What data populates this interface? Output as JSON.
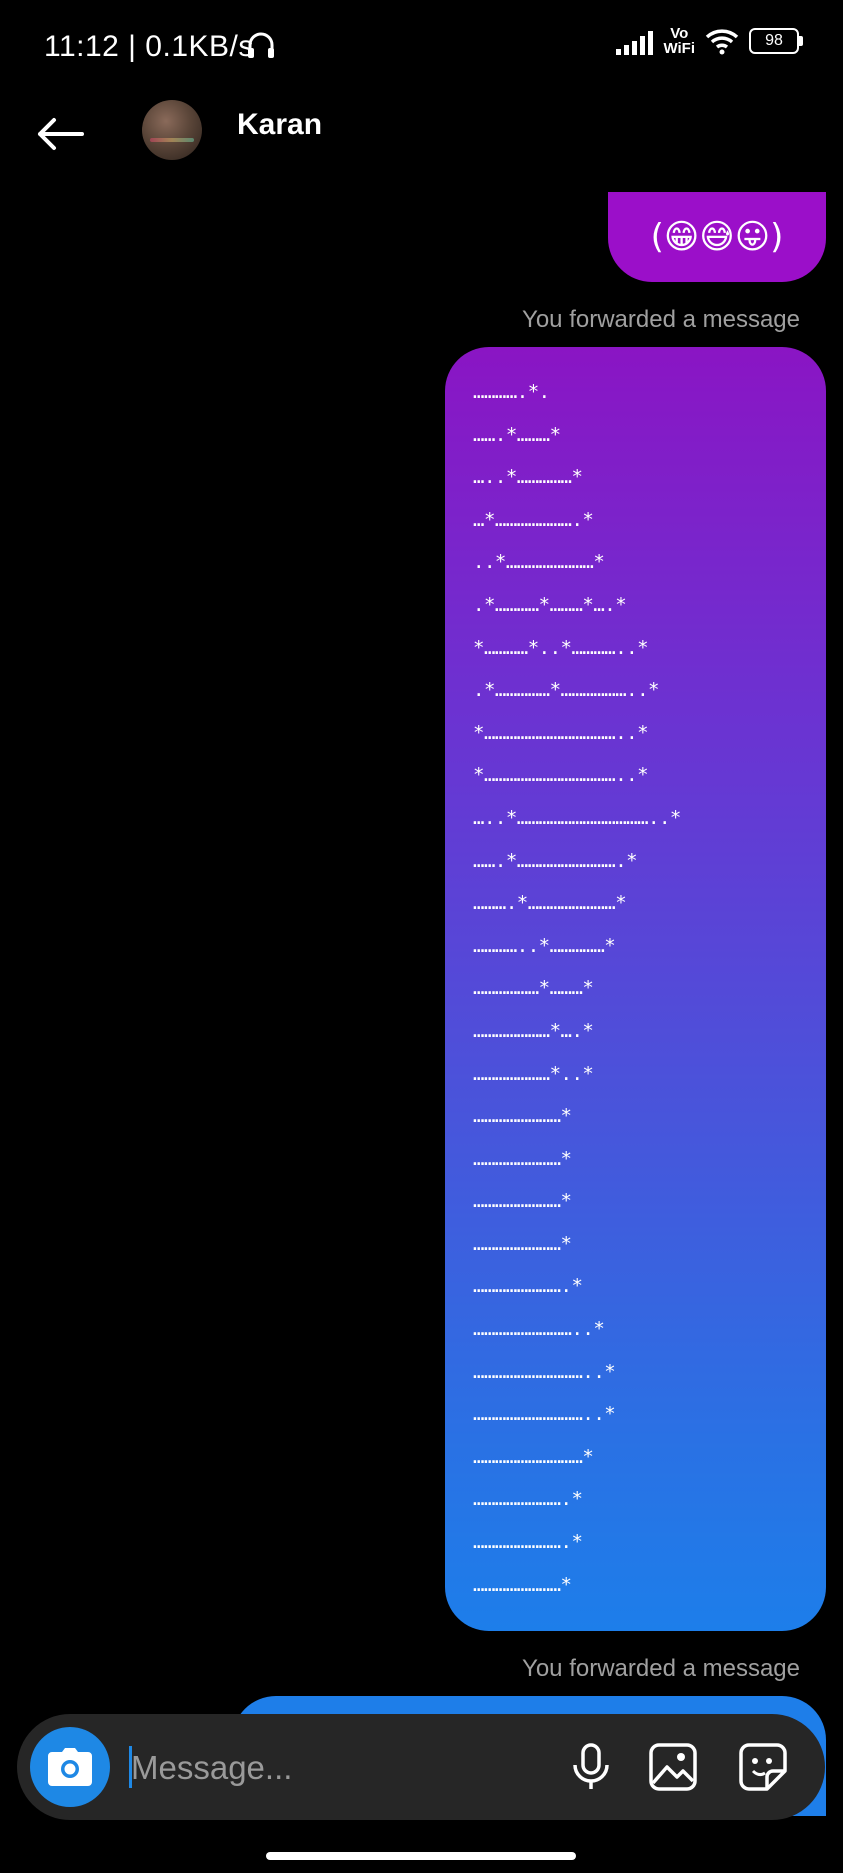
{
  "status_bar": {
    "time_speed": "11:12 | 0.1KB/s",
    "vowifi_top": "Vo",
    "vowifi_bottom": "WiFi",
    "battery": "98"
  },
  "header": {
    "contact_name": "Karan"
  },
  "messages": {
    "emoji_message": "(😁😅😛)",
    "forwarded_label_1": "You forwarded a message",
    "ascii_art": [
      "………….*.",
      "…….*………*",
      "…..*……………*",
      "…*………………….*",
      "..*……………………*",
      ".*…………*………*….*",
      "*…………*..*…………..*",
      ".*……………*………………..*",
      "*………………………………..*",
      "*………………………………..*",
      "…..*………………………………..*",
      "…….*……………………….*",
      "……….*……………………*",
      "…………..*……………*",
      "………………*………*",
      "…………………*….*",
      "…………………*..*",
      "……………………*",
      "……………………*",
      "……………………*",
      "……………………*",
      "…………………….*",
      "………………………..*",
      "…………………………..*",
      "…………………………..*",
      "…………………………*",
      "…………………….*",
      "…………………….*",
      "……………………*"
    ],
    "forwarded_label_2": "You forwarded a message"
  },
  "composer": {
    "placeholder": "Message..."
  },
  "icons": {
    "back": "arrow-left-icon",
    "camera": "camera-icon",
    "mic": "microphone-icon",
    "gallery": "image-icon",
    "sticker": "sticker-icon"
  },
  "colors": {
    "bubble_purple": "#9b0fc9",
    "bubble_blue": "#1e7ee9",
    "camera_blue": "#1e88e5",
    "composer_bg": "#262626"
  }
}
